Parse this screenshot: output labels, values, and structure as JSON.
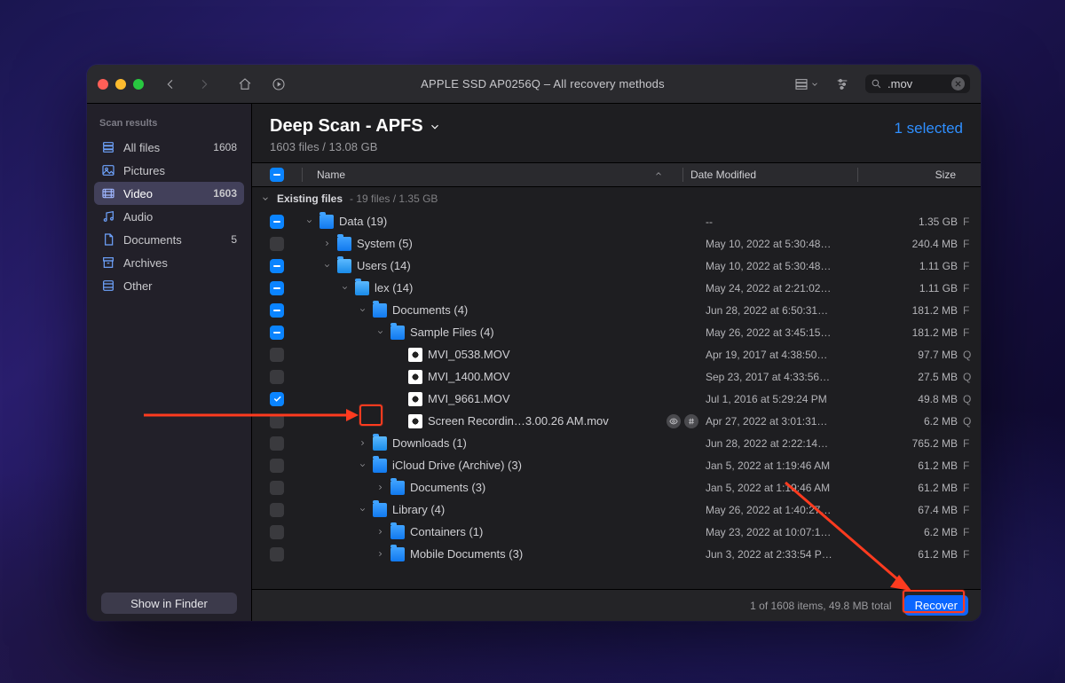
{
  "titlebar": {
    "title": "APPLE SSD AP0256Q – All recovery methods",
    "search_value": ".mov"
  },
  "sidebar": {
    "heading": "Scan results",
    "items": [
      {
        "label": "All files",
        "count": "1608",
        "icon": "stack",
        "active": false
      },
      {
        "label": "Pictures",
        "count": "",
        "icon": "picture",
        "active": false
      },
      {
        "label": "Video",
        "count": "1603",
        "icon": "video",
        "active": true
      },
      {
        "label": "Audio",
        "count": "",
        "icon": "audio",
        "active": false
      },
      {
        "label": "Documents",
        "count": "5",
        "icon": "doc",
        "active": false
      },
      {
        "label": "Archives",
        "count": "",
        "icon": "archive",
        "active": false
      },
      {
        "label": "Other",
        "count": "",
        "icon": "other",
        "active": false
      }
    ],
    "show_in_finder": "Show in Finder"
  },
  "scan": {
    "title": "Deep Scan - APFS",
    "subtitle": "1603 files / 13.08 GB",
    "selected": "1 selected"
  },
  "columns": {
    "name": "Name",
    "date": "Date Modified",
    "size": "Size"
  },
  "group": {
    "label": "Existing files",
    "meta": "19 files / 1.35 GB"
  },
  "rows": [
    {
      "indent": 0,
      "check": "mixed",
      "expand": "down",
      "icon": "folder",
      "name": "Data (19)",
      "date": "--",
      "size": "1.35 GB",
      "kind": "F"
    },
    {
      "indent": 1,
      "check": "unchecked",
      "expand": "right",
      "icon": "folder",
      "name": "System (5)",
      "date": "May 10, 2022 at 5:30:48…",
      "size": "240.4 MB",
      "kind": "F"
    },
    {
      "indent": 1,
      "check": "mixed",
      "expand": "down",
      "icon": "folder-apps",
      "name": "Users (14)",
      "date": "May 10, 2022 at 5:30:48…",
      "size": "1.11 GB",
      "kind": "F"
    },
    {
      "indent": 2,
      "check": "mixed",
      "expand": "down",
      "icon": "folder-apps",
      "name": "lex (14)",
      "date": "May 24, 2022 at 2:21:02…",
      "size": "1.11 GB",
      "kind": "F"
    },
    {
      "indent": 3,
      "check": "mixed",
      "expand": "down",
      "icon": "folder",
      "name": "Documents (4)",
      "date": "Jun 28, 2022 at 6:50:31…",
      "size": "181.2 MB",
      "kind": "F"
    },
    {
      "indent": 4,
      "check": "mixed",
      "expand": "down",
      "icon": "folder",
      "name": "Sample Files (4)",
      "date": "May 26, 2022 at 3:45:15…",
      "size": "181.2 MB",
      "kind": "F"
    },
    {
      "indent": 5,
      "check": "unchecked",
      "expand": "none",
      "icon": "file-qt",
      "name": "MVI_0538.MOV",
      "date": "Apr 19, 2017 at 4:38:50…",
      "size": "97.7 MB",
      "kind": "Q"
    },
    {
      "indent": 5,
      "check": "unchecked",
      "expand": "none",
      "icon": "file-qt",
      "name": "MVI_1400.MOV",
      "date": "Sep 23, 2017 at 4:33:56…",
      "size": "27.5 MB",
      "kind": "Q"
    },
    {
      "indent": 5,
      "check": "checked",
      "expand": "none",
      "icon": "file-qt",
      "name": "MVI_9661.MOV",
      "date": "Jul 1, 2016 at 5:29:24 PM",
      "size": "49.8 MB",
      "kind": "Q"
    },
    {
      "indent": 5,
      "check": "unchecked",
      "expand": "none",
      "icon": "file-qt",
      "name": "Screen Recordin…3.00.26 AM.mov",
      "date": "Apr 27, 2022 at 3:01:31…",
      "size": "6.2 MB",
      "kind": "Q",
      "badges": true
    },
    {
      "indent": 3,
      "check": "unchecked",
      "expand": "right",
      "icon": "folder-apps",
      "name": "Downloads (1)",
      "date": "Jun 28, 2022 at 2:22:14…",
      "size": "765.2 MB",
      "kind": "F"
    },
    {
      "indent": 3,
      "check": "unchecked",
      "expand": "down",
      "icon": "folder",
      "name": "iCloud Drive (Archive)  (3)",
      "date": "Jan 5, 2022 at 1:19:46 AM",
      "size": "61.2 MB",
      "kind": "F"
    },
    {
      "indent": 4,
      "check": "unchecked",
      "expand": "right",
      "icon": "folder",
      "name": "Documents (3)",
      "date": "Jan 5, 2022 at 1:19:46 AM",
      "size": "61.2 MB",
      "kind": "F"
    },
    {
      "indent": 3,
      "check": "unchecked",
      "expand": "down",
      "icon": "folder",
      "name": "Library (4)",
      "date": "May 26, 2022 at 1:40:27…",
      "size": "67.4 MB",
      "kind": "F"
    },
    {
      "indent": 4,
      "check": "unchecked",
      "expand": "right",
      "icon": "folder",
      "name": "Containers (1)",
      "date": "May 23, 2022 at 10:07:1…",
      "size": "6.2 MB",
      "kind": "F"
    },
    {
      "indent": 4,
      "check": "unchecked",
      "expand": "right",
      "icon": "folder",
      "name": "Mobile Documents (3)",
      "date": "Jun 3, 2022 at 2:33:54 P…",
      "size": "61.2 MB",
      "kind": "F"
    }
  ],
  "footer": {
    "status": "1 of 1608 items, 49.8 MB total",
    "recover": "Recover"
  },
  "colors": {
    "accent": "#0a84ff",
    "accent_button": "#0a66ff",
    "annotation": "#ff3b1f"
  }
}
